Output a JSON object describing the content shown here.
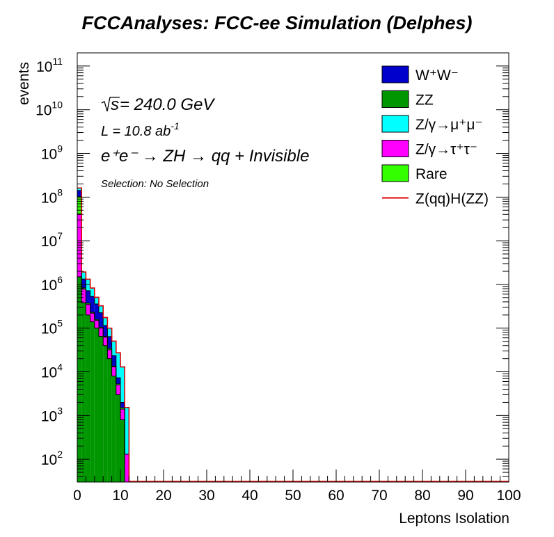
{
  "chart_data": {
    "type": "bar",
    "title": "FCCAnalyses: FCC-ee Simulation (Delphes)",
    "xlabel": "Leptons Isolation",
    "ylabel": "events",
    "xlim": [
      0,
      100
    ],
    "ylim": [
      30,
      200000000000
    ],
    "yscale": "log",
    "stacked": true,
    "x_ticks": [
      "0",
      "10",
      "20",
      "30",
      "40",
      "50",
      "60",
      "70",
      "80",
      "90",
      "100"
    ],
    "y_ticks": [
      {
        "base": "10",
        "exp": "2",
        "value": 100
      },
      {
        "base": "10",
        "exp": "3",
        "value": 1000
      },
      {
        "base": "10",
        "exp": "4",
        "value": 10000
      },
      {
        "base": "10",
        "exp": "5",
        "value": 100000
      },
      {
        "base": "10",
        "exp": "6",
        "value": 1000000
      },
      {
        "base": "10",
        "exp": "7",
        "value": 10000000
      },
      {
        "base": "10",
        "exp": "8",
        "value": 100000000
      },
      {
        "base": "10",
        "exp": "9",
        "value": 1000000000
      },
      {
        "base": "10",
        "exp": "10",
        "value": 10000000000
      },
      {
        "base": "10",
        "exp": "11",
        "value": 100000000000
      }
    ],
    "bin_edges": [
      0,
      1,
      2,
      3,
      4,
      5,
      6,
      7,
      8,
      9,
      10,
      11,
      12
    ],
    "series": [
      {
        "name": "ZZ",
        "color": "#009600",
        "values": [
          1500000,
          380000,
          200000,
          140000,
          100000,
          65000,
          40000,
          20000,
          8000,
          3000,
          800,
          30
        ]
      },
      {
        "name": "Z/γ→τ⁺τ⁻",
        "color": "#ff00ff",
        "values": [
          40000000,
          400000,
          150000,
          80000,
          50000,
          35000,
          22000,
          12000,
          5000,
          2000,
          600,
          100
        ]
      },
      {
        "name": "Rare",
        "color": "#33ff00",
        "values": [
          60000000,
          50000,
          20000,
          10000,
          8000,
          5000,
          3000,
          2000,
          500,
          300,
          100,
          0
        ]
      },
      {
        "name": "W⁺W⁻",
        "color": "#0000cc",
        "values": [
          40000000,
          500000,
          350000,
          300000,
          200000,
          120000,
          50000,
          30000,
          10000,
          2000,
          500,
          0
        ]
      },
      {
        "name": "Z/γ→μ⁺μ⁻",
        "color": "#00ffff",
        "values": [
          20000000,
          600000,
          600000,
          300000,
          150000,
          100000,
          60000,
          36000,
          27000,
          20000,
          11000,
          1400
        ]
      }
    ],
    "signal": {
      "name": "Z(qq)H(ZZ)",
      "color": "#e00000"
    },
    "legend": {
      "position": "top-right"
    }
  },
  "annotations": {
    "sqrt_s": "s",
    "energy": " = 240.0 GeV",
    "lumi_main": "L = 10.8 ab",
    "lumi_exp": "-1",
    "process": "e⁺e⁻ → ZH → qq + Invisible",
    "selection": "Selection: No Selection"
  },
  "legend_labels": [
    "W⁺W⁻",
    "ZZ",
    "Z/γ→μ⁺μ⁻",
    "Z/γ→τ⁺τ⁻",
    "Rare",
    "Z(qq)H(ZZ)"
  ]
}
